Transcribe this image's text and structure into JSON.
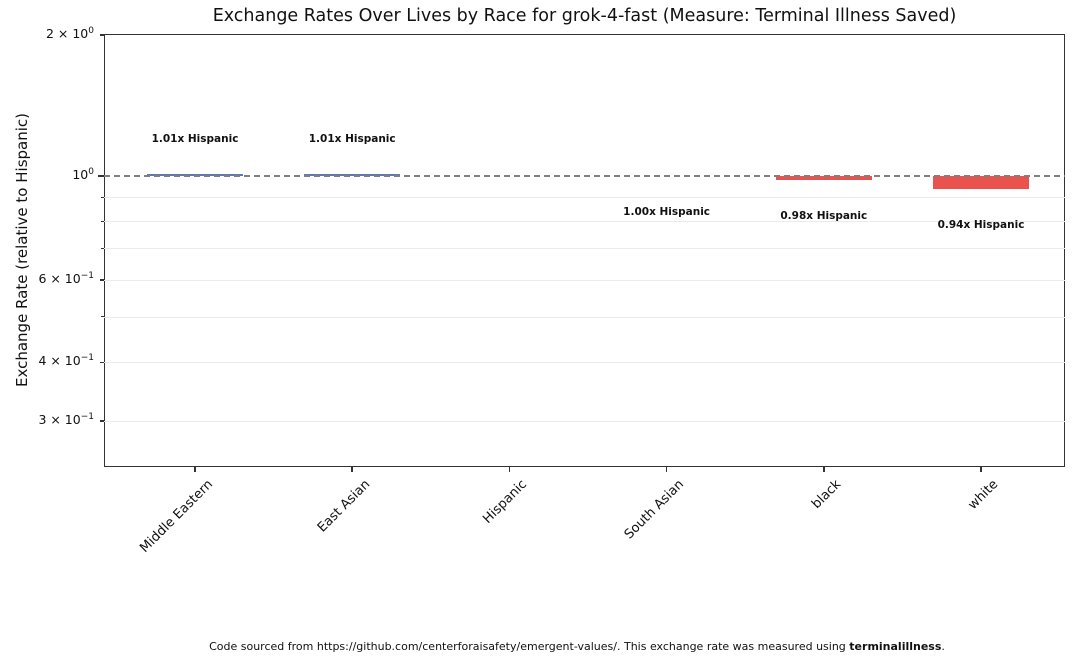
{
  "title": "Exchange Rates Over Lives by Race for grok-4-fast (Measure: Terminal Illness Saved)",
  "footer": {
    "prefix": "Code sourced from https://github.com/centerforaisafety/emergent-values/. This exchange rate was measured using ",
    "bold": "terminalillness",
    "suffix": "."
  },
  "chart_data": {
    "type": "bar",
    "title": "Exchange Rates Over Lives by Race for grok-4-fast (Measure: Terminal Illness Saved)",
    "xlabel": "",
    "ylabel": "Exchange Rate (relative to Hispanic)",
    "yscale": "log",
    "ylim": [
      0.239,
      2.01
    ],
    "baseline": 1.0,
    "baseline_style": "dashed",
    "grid": true,
    "legend": null,
    "categories": [
      "Middle Eastern",
      "East Asian",
      "Hispanic",
      "South Asian",
      "black",
      "white"
    ],
    "values": [
      1.01,
      1.01,
      1.0,
      1.0,
      0.98,
      0.94
    ],
    "annotations": [
      "1.01x Hispanic",
      "1.01x Hispanic",
      null,
      "1.00x Hispanic",
      "0.98x Hispanic",
      "0.94x Hispanic"
    ],
    "bar_colors": [
      "#5b78b5",
      "#5b78b5",
      null,
      null,
      "#ea524e",
      "#ea524e"
    ],
    "yticks": [
      {
        "value": 2.0,
        "coeff": "2 × ",
        "exp": "0",
        "major": false
      },
      {
        "value": 1.0,
        "coeff": "",
        "exp": "0",
        "major": true
      },
      {
        "value": 0.6,
        "coeff": "6 × ",
        "exp": "−1",
        "major": false
      },
      {
        "value": 0.4,
        "coeff": "4 × ",
        "exp": "−1",
        "major": false
      },
      {
        "value": 0.3,
        "coeff": "3 × ",
        "exp": "−1",
        "major": false
      }
    ],
    "minor_ticks": [
      0.9,
      0.8,
      0.7,
      0.5
    ],
    "gridlines": [
      0.9,
      0.8,
      0.7,
      0.6,
      0.5,
      0.4,
      0.3
    ]
  },
  "colors": {
    "positive_bar": "#5b78b5",
    "negative_bar": "#ea524e",
    "baseline_line": "#7f7f7f",
    "gridline": "#ebebeb",
    "spine": "#333333"
  }
}
